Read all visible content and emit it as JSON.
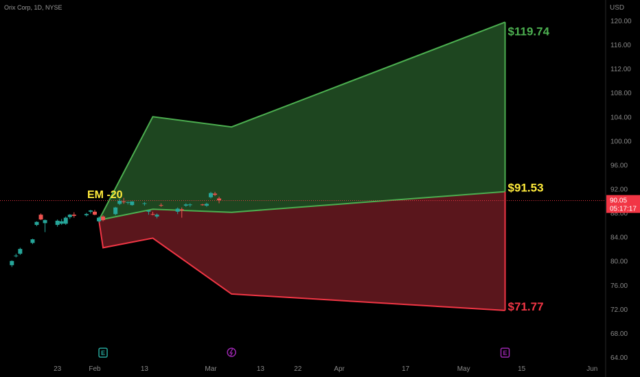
{
  "header": {
    "symbol_info": "Orix Corp, 1D, NYSE"
  },
  "chart_data": {
    "type": "candlestick",
    "currency_label": "USD",
    "y_ticks": [
      "120.00",
      "116.00",
      "112.00",
      "108.00",
      "104.00",
      "100.00",
      "96.00",
      "92.00",
      "88.00",
      "84.00",
      "80.00",
      "76.00",
      "72.00",
      "68.00",
      "64.00"
    ],
    "ylim": [
      64,
      120
    ],
    "x_ticks": [
      "23",
      "Feb",
      "13",
      "Mar",
      "13",
      "22",
      "Apr",
      "17",
      "May",
      "15",
      "Jun"
    ],
    "current_price": {
      "value": "90.05",
      "countdown": "05:17:17"
    },
    "annotation_label": "EM -20",
    "expected_move": {
      "upper_label": "$119.74",
      "mid_label": "$91.53",
      "lower_label": "$71.77",
      "upper": [
        [
          "Feb 2",
          86.8
        ],
        [
          "Feb 15",
          104.0
        ],
        [
          "Mar 6",
          102.3
        ],
        [
          "May 11",
          119.74
        ]
      ],
      "mid": [
        [
          "Feb 2",
          86.8
        ],
        [
          "Feb 15",
          88.6
        ],
        [
          "Mar 6",
          88.1
        ],
        [
          "May 11",
          91.53
        ]
      ],
      "lower": [
        [
          "Feb 2",
          86.8
        ],
        [
          "Feb 3",
          82.2
        ],
        [
          "Feb 15",
          83.8
        ],
        [
          "Mar 6",
          74.5
        ],
        [
          "May 11",
          71.77
        ]
      ]
    },
    "candles": [
      {
        "date": "Jan 12",
        "o": 79.3,
        "h": 80.1,
        "l": 79.0,
        "c": 80.0
      },
      {
        "date": "Jan 13",
        "o": 80.8,
        "h": 81.2,
        "l": 80.6,
        "c": 80.9
      },
      {
        "date": "Jan 14",
        "o": 81.2,
        "h": 82.2,
        "l": 81.0,
        "c": 82.0
      },
      {
        "date": "Jan 17",
        "o": 83.0,
        "h": 83.7,
        "l": 82.8,
        "c": 83.6
      },
      {
        "date": "Jan 18",
        "o": 86.0,
        "h": 86.6,
        "l": 85.8,
        "c": 86.5
      },
      {
        "date": "Jan 19",
        "o": 87.7,
        "h": 87.9,
        "l": 86.8,
        "c": 86.9
      },
      {
        "date": "Jan 20",
        "o": 86.3,
        "h": 86.9,
        "l": 84.8,
        "c": 86.8
      },
      {
        "date": "Jan 23",
        "o": 86.0,
        "h": 86.9,
        "l": 85.7,
        "c": 86.7
      },
      {
        "date": "Jan 24",
        "o": 86.2,
        "h": 87.0,
        "l": 86.0,
        "c": 86.6
      },
      {
        "date": "Jan 25",
        "o": 86.2,
        "h": 87.4,
        "l": 86.0,
        "c": 87.2
      },
      {
        "date": "Jan 26",
        "o": 87.3,
        "h": 87.8,
        "l": 87.0,
        "c": 87.7
      },
      {
        "date": "Jan 27",
        "o": 87.7,
        "h": 88.1,
        "l": 87.2,
        "c": 87.5
      },
      {
        "date": "Jan 30",
        "o": 87.6,
        "h": 88.0,
        "l": 87.4,
        "c": 87.8
      },
      {
        "date": "Jan 31",
        "o": 88.2,
        "h": 88.5,
        "l": 87.9,
        "c": 88.4
      },
      {
        "date": "Feb 1",
        "o": 88.2,
        "h": 88.5,
        "l": 87.6,
        "c": 87.7
      },
      {
        "date": "Feb 2",
        "o": 86.6,
        "h": 87.4,
        "l": 86.4,
        "c": 87.2
      },
      {
        "date": "Feb 3",
        "o": 87.4,
        "h": 87.6,
        "l": 86.6,
        "c": 86.8
      },
      {
        "date": "Feb 6",
        "o": 87.8,
        "h": 89.0,
        "l": 87.6,
        "c": 88.9
      },
      {
        "date": "Feb 7",
        "o": 89.5,
        "h": 90.4,
        "l": 89.3,
        "c": 90.0
      },
      {
        "date": "Feb 8",
        "o": 89.9,
        "h": 90.5,
        "l": 89.5,
        "c": 89.8
      },
      {
        "date": "Feb 9",
        "o": 89.7,
        "h": 89.9,
        "l": 89.4,
        "c": 89.8
      },
      {
        "date": "Feb 10",
        "o": 89.3,
        "h": 89.9,
        "l": 89.2,
        "c": 89.9
      },
      {
        "date": "Feb 13",
        "o": 89.6,
        "h": 89.8,
        "l": 89.2,
        "c": 89.6
      },
      {
        "date": "Feb 14",
        "o": 88.2,
        "h": 88.5,
        "l": 87.7,
        "c": 88.4
      },
      {
        "date": "Feb 15",
        "o": 87.8,
        "h": 88.2,
        "l": 87.6,
        "c": 87.7
      },
      {
        "date": "Feb 16",
        "o": 87.4,
        "h": 87.9,
        "l": 87.1,
        "c": 87.7
      },
      {
        "date": "Feb 17",
        "o": 89.3,
        "h": 89.6,
        "l": 89.0,
        "c": 89.2
      },
      {
        "date": "Feb 21",
        "o": 88.2,
        "h": 88.9,
        "l": 87.8,
        "c": 88.7
      },
      {
        "date": "Feb 22",
        "o": 88.6,
        "h": 88.9,
        "l": 87.2,
        "c": 88.4
      },
      {
        "date": "Feb 23",
        "o": 89.2,
        "h": 89.6,
        "l": 89.0,
        "c": 89.4
      },
      {
        "date": "Feb 24",
        "o": 89.3,
        "h": 89.6,
        "l": 89.0,
        "c": 89.4
      },
      {
        "date": "Feb 27",
        "o": 89.4,
        "h": 89.5,
        "l": 89.2,
        "c": 89.3
      },
      {
        "date": "Feb 28",
        "o": 89.2,
        "h": 89.7,
        "l": 89.0,
        "c": 89.5
      },
      {
        "date": "Mar 1",
        "o": 90.6,
        "h": 91.5,
        "l": 90.4,
        "c": 91.3
      },
      {
        "date": "Mar 2",
        "o": 91.2,
        "h": 91.5,
        "l": 90.8,
        "c": 91.0
      },
      {
        "date": "Mar 3",
        "o": 90.4,
        "h": 90.7,
        "l": 89.6,
        "c": 90.1
      }
    ],
    "events": [
      {
        "icon": "earnings-icon",
        "date": "Feb 3",
        "color": "#26a69a"
      },
      {
        "icon": "dividend-icon",
        "date": "Mar 6",
        "color": "#9c27b0"
      },
      {
        "icon": "earnings-icon",
        "date": "May 11",
        "color": "#9c27b0"
      }
    ],
    "colors": {
      "up": "#26a69a",
      "down": "#ef5350",
      "upper_band": "#4caf50",
      "lower_band": "#f23645",
      "mid_label": "#ffeb3b",
      "annotation": "#ffeb3b",
      "price_line": "#f23645"
    }
  }
}
